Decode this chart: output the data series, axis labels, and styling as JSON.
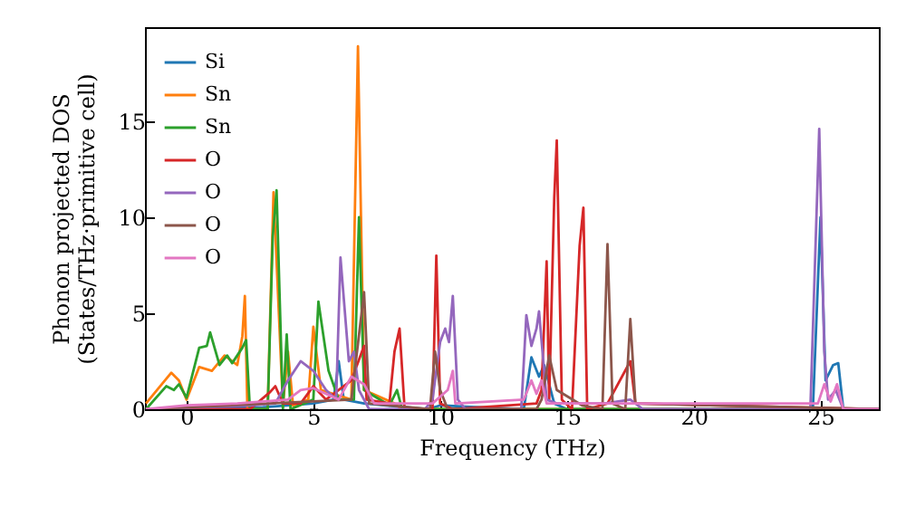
{
  "chart_data": {
    "type": "line",
    "xlabel": "Frequency (THz)",
    "ylabel": "Phonon projected DOS\n(States/THz·primitive cell)",
    "xlim": [
      -1.64,
      27.3
    ],
    "ylim": [
      0,
      19.9
    ],
    "xticks": [
      0,
      5,
      10,
      15,
      20,
      25
    ],
    "yticks": [
      0,
      5,
      10,
      15
    ],
    "legend": "top left",
    "grid": false,
    "marker": "none",
    "line_style": "solid",
    "series": [
      {
        "name": "Si",
        "color": "#1f77b4",
        "x": [
          -1.6,
          3,
          5,
          5.8,
          6.0,
          6.2,
          7,
          9.5,
          10,
          13.3,
          13.6,
          13.9,
          14.1,
          14.5,
          15,
          24.7,
          25.0,
          25.2,
          25.5,
          25.7,
          25.9,
          27.3
        ],
        "values": [
          0,
          0.1,
          0.3,
          0.5,
          2.5,
          0.5,
          0.3,
          0,
          0.2,
          0,
          2.7,
          1.7,
          2.3,
          0.3,
          0,
          0,
          10,
          1.5,
          2.3,
          2.4,
          0,
          0
        ]
      },
      {
        "name": "Sn",
        "color": "#ff7f0e",
        "x": [
          -1.6,
          -0.6,
          -0.3,
          0,
          0.5,
          1.0,
          1.5,
          2.0,
          2.2,
          2.3,
          2.4,
          3.2,
          3.43,
          3.8,
          4.0,
          4.2,
          4.8,
          5.0,
          5.3,
          6.5,
          6.76,
          7.0,
          8.2,
          8.5,
          27.3
        ],
        "values": [
          0.3,
          1.9,
          1.5,
          0.5,
          2.2,
          2.0,
          2.8,
          2.3,
          3.8,
          5.9,
          0,
          0,
          11.3,
          0.2,
          3.0,
          0.2,
          0.5,
          4.3,
          1.0,
          0.5,
          18.9,
          1.0,
          0.3,
          0,
          0
        ]
      },
      {
        "name": "Sn",
        "color": "#2ca02c",
        "x": [
          -1.6,
          -0.8,
          -0.5,
          -0.3,
          0,
          0.5,
          0.8,
          0.93,
          1.3,
          1.6,
          1.8,
          2.2,
          2.35,
          2.5,
          3.2,
          3.4,
          3.55,
          3.8,
          3.95,
          4.1,
          5.0,
          5.2,
          5.6,
          6.0,
          6.6,
          6.8,
          7.0,
          8.0,
          8.3,
          8.5,
          27.3
        ],
        "values": [
          0,
          1.2,
          1.0,
          1.3,
          0.6,
          3.2,
          3.3,
          4.0,
          2.3,
          2.8,
          2.4,
          3.2,
          3.6,
          0,
          0,
          9,
          11.4,
          0,
          3.9,
          0,
          0.5,
          5.6,
          2,
          0.5,
          0.5,
          10,
          1,
          0.2,
          1,
          0,
          0
        ]
      },
      {
        "name": "O",
        "color": "#d62728",
        "x": [
          -1.6,
          2.5,
          3.3,
          3.5,
          3.8,
          4.5,
          5.0,
          5.5,
          6.5,
          7.0,
          7.1,
          8.0,
          8.2,
          8.4,
          8.6,
          9.7,
          9.85,
          10.0,
          10.5,
          13.8,
          14.0,
          14.2,
          14.3,
          14.5,
          14.6,
          14.8,
          15.2,
          15.5,
          15.65,
          15.8,
          16.6,
          17.5,
          17.7,
          27.3
        ],
        "values": [
          0,
          0,
          0.9,
          1.2,
          0.3,
          0.3,
          1.2,
          0.5,
          1.5,
          3.3,
          0.5,
          0.3,
          3,
          4.2,
          0,
          0,
          8.0,
          0.3,
          0,
          0.3,
          1,
          7.7,
          0.5,
          11,
          14,
          0.5,
          0,
          8.5,
          10.5,
          0,
          0.3,
          2.5,
          0.3,
          0
        ]
      },
      {
        "name": "O",
        "color": "#9467bd",
        "x": [
          -1.6,
          2.5,
          3.5,
          4.0,
          4.5,
          5.0,
          5.5,
          5.9,
          6.07,
          6.4,
          6.6,
          6.8,
          7.2,
          9.4,
          9.7,
          10.0,
          10.2,
          10.35,
          10.5,
          10.7,
          11,
          13.2,
          13.4,
          13.6,
          13.8,
          13.9,
          14.2,
          14.6,
          16.5,
          17.5,
          18,
          24.6,
          24.95,
          25.15,
          25.3,
          25.6,
          25.9,
          27.3
        ],
        "values": [
          0,
          0.2,
          0.3,
          1.5,
          2.5,
          2,
          1,
          0.5,
          7.9,
          2.5,
          3,
          1,
          0,
          0,
          0.5,
          3.5,
          4.2,
          3.5,
          5.9,
          0.5,
          0,
          0,
          4.9,
          3.3,
          4.2,
          5.1,
          0.5,
          0.3,
          0.3,
          0.5,
          0,
          0,
          14.6,
          3,
          0.5,
          1,
          0,
          0
        ]
      },
      {
        "name": "O",
        "color": "#8c564b",
        "x": [
          -1.6,
          6.5,
          7.0,
          7.2,
          9.6,
          9.8,
          10.0,
          10.3,
          13.8,
          14.0,
          14.3,
          14.6,
          15.6,
          16.4,
          16.6,
          16.8,
          17.3,
          17.5,
          17.7,
          27.3
        ],
        "values": [
          0,
          0.5,
          6.1,
          0.3,
          0,
          3,
          1,
          0,
          0,
          0.5,
          2.8,
          1,
          0.2,
          0,
          8.6,
          0.3,
          0,
          4.7,
          0.3,
          0
        ]
      },
      {
        "name": "O",
        "color": "#e377c2",
        "x": [
          -1.6,
          0,
          2,
          4.0,
          4.5,
          5.0,
          5.5,
          6.0,
          6.5,
          7.0,
          7.4,
          9.7,
          10.3,
          10.5,
          10.6,
          13.3,
          13.6,
          13.8,
          14.0,
          14.2,
          24.9,
          25.15,
          25.4,
          25.65,
          25.9,
          27.3
        ],
        "values": [
          0,
          0.2,
          0.3,
          0.5,
          1,
          1.1,
          0.8,
          0.5,
          1.7,
          1.3,
          0.3,
          0.3,
          1.0,
          2,
          0.3,
          0.5,
          1.5,
          0.8,
          1.5,
          0.3,
          0.3,
          1.3,
          0.4,
          1.3,
          0,
          0
        ]
      }
    ]
  }
}
